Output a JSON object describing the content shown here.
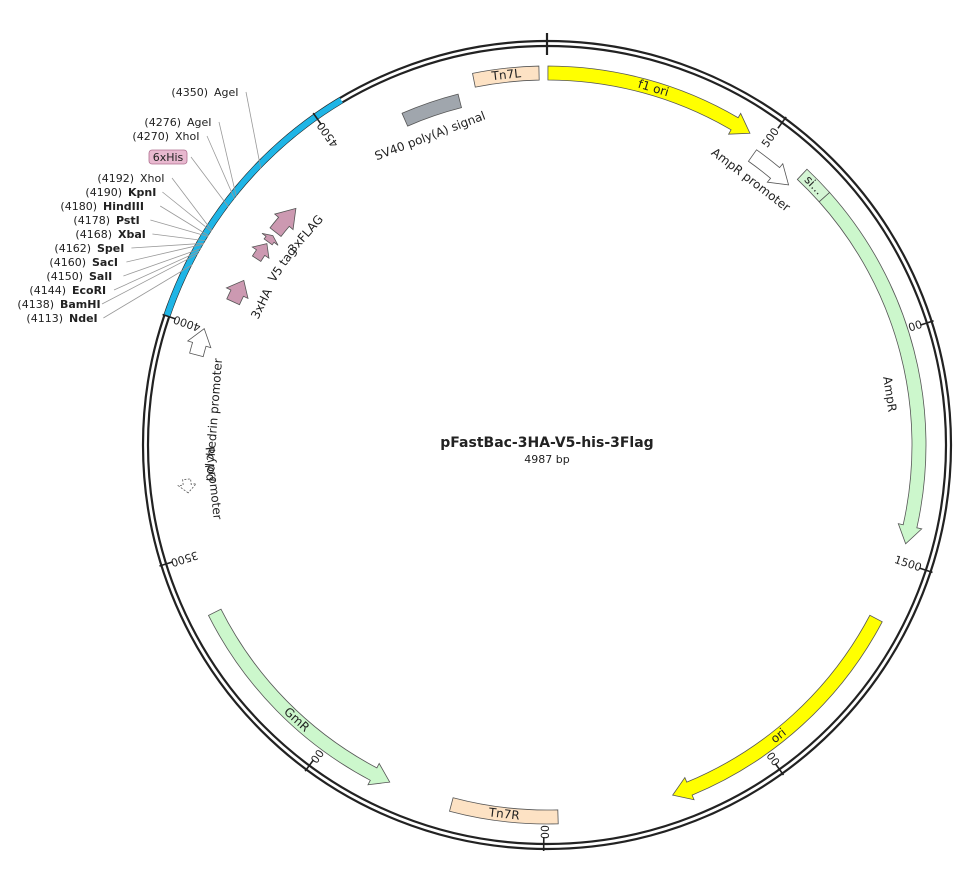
{
  "plasmid": {
    "name": "pFastBac-3HA-V5-his-3Flag",
    "length_label": "4987 bp",
    "length": 4987
  },
  "ticks": [
    {
      "pos": 500,
      "label": "500"
    },
    {
      "pos": 1000,
      "label": "1000"
    },
    {
      "pos": 1500,
      "label": "1500"
    },
    {
      "pos": 2000,
      "label": "2000"
    },
    {
      "pos": 2500,
      "label": "2500"
    },
    {
      "pos": 3000,
      "label": "3000"
    },
    {
      "pos": 3500,
      "label": "3500"
    },
    {
      "pos": 4000,
      "label": "4000"
    },
    {
      "pos": 4500,
      "label": "4500"
    }
  ],
  "highlight_region": {
    "start": 4000,
    "end": 4560,
    "color": "#1fb5e6"
  },
  "features": [
    {
      "id": "f1-ori",
      "label": "f1 ori",
      "start": 2,
      "end": 458,
      "dir": 1,
      "color": "#ffff00",
      "type": "arrow"
    },
    {
      "id": "ampr-promoter",
      "label": "AmpR promoter",
      "start": 490,
      "end": 594,
      "dir": 1,
      "color": "#ffffff",
      "type": "arrow"
    },
    {
      "id": "sig",
      "label": "si...",
      "start": 600,
      "end": 668,
      "dir": 1,
      "color": "#d4f5d4",
      "type": "box"
    },
    {
      "id": "ampr",
      "label": "AmpR",
      "start": 668,
      "end": 1460,
      "dir": 1,
      "color": "#ccf7cc",
      "type": "arrow"
    },
    {
      "id": "ori",
      "label": "ori",
      "start": 1632,
      "end": 2220,
      "dir": 1,
      "color": "#ffff00",
      "type": "arrow"
    },
    {
      "id": "tn7r",
      "label": "Tn7R",
      "start": 2470,
      "end": 2700,
      "dir": 0,
      "color": "#fde2c4",
      "type": "box"
    },
    {
      "id": "gmr",
      "label": "GmR",
      "start": 2840,
      "end": 3370,
      "dir": -1,
      "color": "#ccf7cc",
      "type": "arrow"
    },
    {
      "id": "pc-promoter",
      "label": "Pc promoter",
      "start": 3635,
      "end": 3665,
      "dir": -1,
      "color": "#ffffff",
      "type": "arrow",
      "dashed": true
    },
    {
      "id": "polyhedrin-promoter",
      "label": "polyhedrin promoter",
      "start": 3940,
      "end": 4000,
      "dir": 1,
      "color": "#ffffff",
      "type": "arrow"
    },
    {
      "id": "3xha",
      "label": "3xHA",
      "start": 4080,
      "end": 4135,
      "dir": 1,
      "color": "#cc99b1",
      "type": "arrow"
    },
    {
      "id": "v5-tag",
      "label": "V5 tag",
      "start": 4193,
      "end": 4235,
      "dir": 1,
      "color": "#cc99b1",
      "type": "arrow"
    },
    {
      "id": "6xhis-arrow",
      "label": "",
      "start": 4240,
      "end": 4258,
      "dir": 1,
      "color": "#cc99b1",
      "type": "arrow"
    },
    {
      "id": "3xflag",
      "label": "3xFLAG",
      "start": 4268,
      "end": 4340,
      "dir": 1,
      "color": "#cc99b1",
      "type": "arrow"
    },
    {
      "id": "sv40",
      "label": "SV40 poly(A) signal",
      "start": 4660,
      "end": 4790,
      "dir": 0,
      "color": "#a0a6ad",
      "type": "box"
    },
    {
      "id": "tn7l",
      "label": "Tn7L",
      "start": 4830,
      "end": 4970,
      "dir": 0,
      "color": "#fde2c4",
      "type": "box"
    }
  ],
  "site_labels": [
    {
      "id": "agei-4350",
      "pos_text": "(4350)",
      "name": "AgeI",
      "bold": false,
      "pos": 4350,
      "boxed": false
    },
    {
      "id": "agei-4276",
      "pos_text": "(4276)",
      "name": "AgeI",
      "bold": false,
      "pos": 4276,
      "boxed": false
    },
    {
      "id": "xhoi-4270",
      "pos_text": "(4270)",
      "name": "XhoI",
      "bold": false,
      "pos": 4270,
      "boxed": false
    },
    {
      "id": "6xhis",
      "pos_text": "",
      "name": "6xHis",
      "bold": false,
      "pos": 4250,
      "boxed": true
    },
    {
      "id": "xhoi-4192",
      "pos_text": "(4192)",
      "name": "XhoI",
      "bold": false,
      "pos": 4192,
      "boxed": false
    },
    {
      "id": "kpni-4190",
      "pos_text": "(4190)",
      "name": "KpnI",
      "bold": true,
      "pos": 4190,
      "boxed": false
    },
    {
      "id": "hindiii-4180",
      "pos_text": "(4180)",
      "name": "HindIII",
      "bold": true,
      "pos": 4180,
      "boxed": false
    },
    {
      "id": "psti-4178",
      "pos_text": "(4178)",
      "name": "PstI",
      "bold": true,
      "pos": 4178,
      "boxed": false
    },
    {
      "id": "xbai-4168",
      "pos_text": "(4168)",
      "name": "XbaI",
      "bold": true,
      "pos": 4168,
      "boxed": false
    },
    {
      "id": "spei-4162",
      "pos_text": "(4162)",
      "name": "SpeI",
      "bold": true,
      "pos": 4162,
      "boxed": false
    },
    {
      "id": "saci-4160",
      "pos_text": "(4160)",
      "name": "SacI",
      "bold": true,
      "pos": 4160,
      "boxed": false
    },
    {
      "id": "sali-4150",
      "pos_text": "(4150)",
      "name": "SalI",
      "bold": true,
      "pos": 4150,
      "boxed": false
    },
    {
      "id": "ecori-4144",
      "pos_text": "(4144)",
      "name": "EcoRI",
      "bold": true,
      "pos": 4144,
      "boxed": false
    },
    {
      "id": "bamhi-4138",
      "pos_text": "(4138)",
      "name": "BamHI",
      "bold": true,
      "pos": 4138,
      "boxed": false
    },
    {
      "id": "ndei-4113",
      "pos_text": "(4113)",
      "name": "NdeI",
      "bold": true,
      "pos": 4113,
      "boxed": false
    }
  ],
  "colors": {
    "backbone": "#222222",
    "leader_line": "#999999",
    "arrow_stroke": "#555555",
    "his_box_fill": "#e8b8cf",
    "his_box_stroke": "#b07090"
  }
}
